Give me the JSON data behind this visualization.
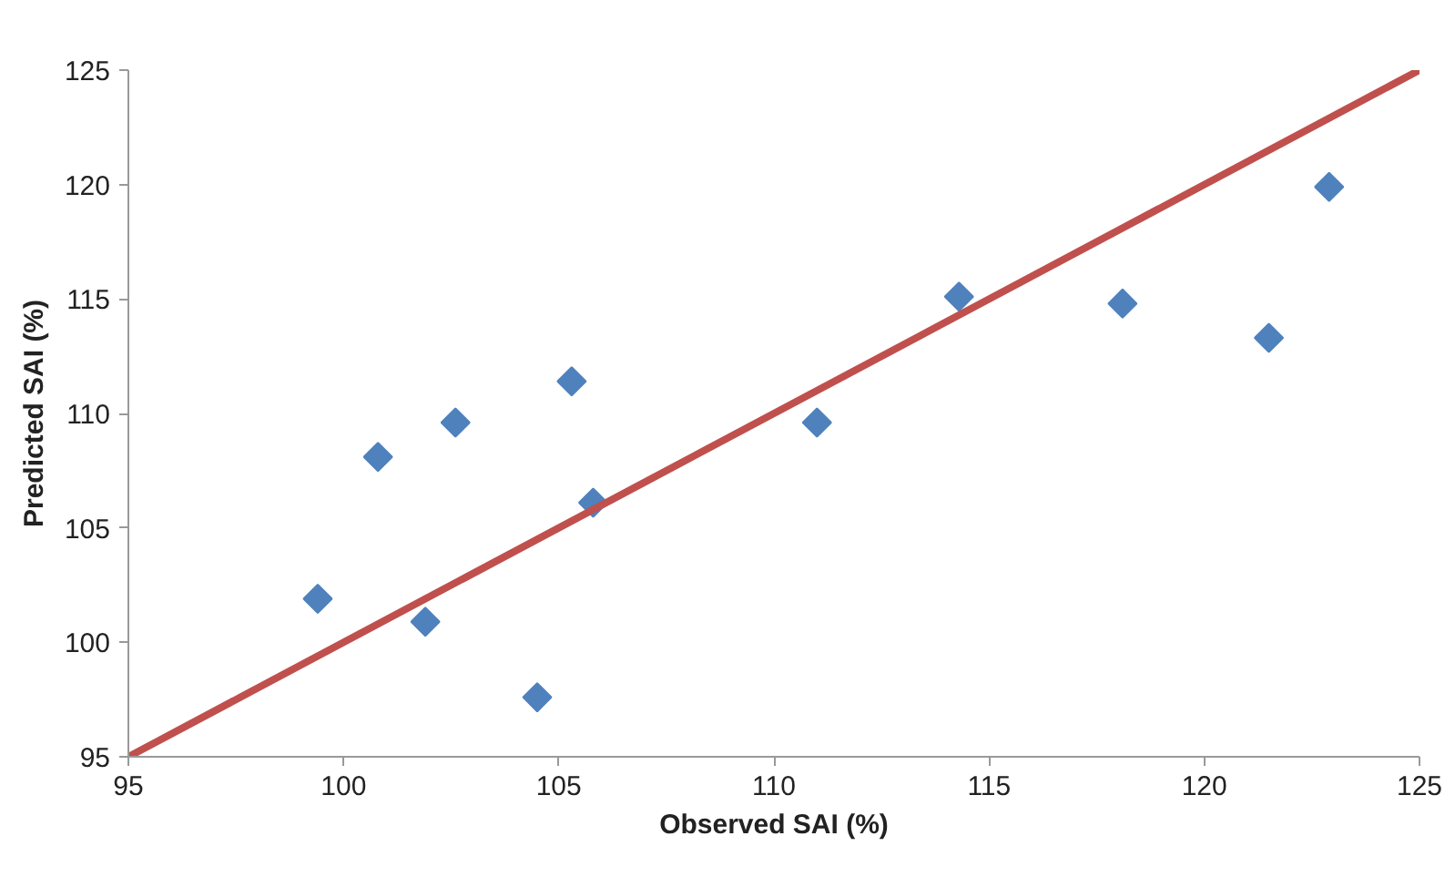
{
  "chart_data": {
    "type": "scatter",
    "xlabel": "Observed SAI (%)",
    "ylabel": "Predicted SAI (%)",
    "xlim": [
      95,
      125
    ],
    "ylim": [
      95,
      125
    ],
    "xticks": [
      95,
      100,
      105,
      110,
      115,
      120,
      125
    ],
    "yticks": [
      95,
      100,
      105,
      110,
      115,
      120,
      125
    ],
    "grid": false,
    "marker": "diamond",
    "series": [
      {
        "color": "#4f81bd",
        "x": [
          99.4,
          100.8,
          101.9,
          102.6,
          104.5,
          105.3,
          105.8,
          111.0,
          114.3,
          118.1,
          121.5,
          122.9
        ],
        "values": [
          101.9,
          108.1,
          100.9,
          109.6,
          97.6,
          111.4,
          106.1,
          109.6,
          115.1,
          114.8,
          113.3,
          119.9
        ]
      },
      {
        "type": "line",
        "color": "#c0504d",
        "line_style": "solid",
        "marker": "none",
        "x": [
          95,
          125
        ],
        "values": [
          95,
          125
        ]
      }
    ]
  }
}
